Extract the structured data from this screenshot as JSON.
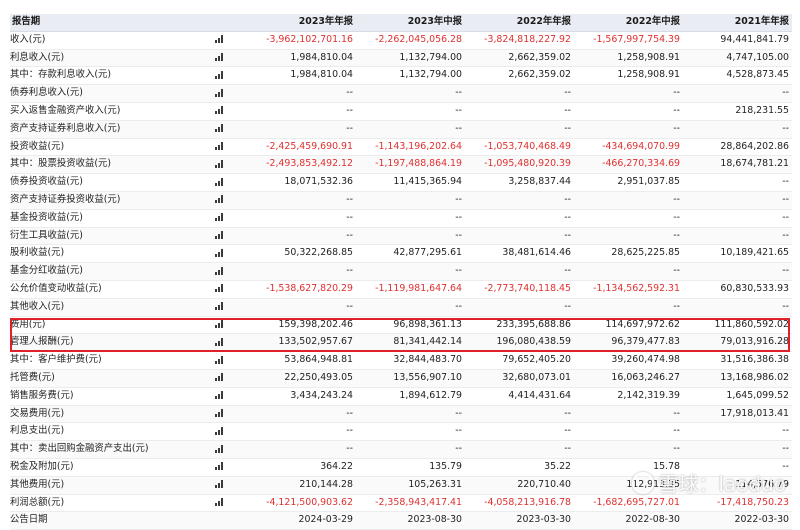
{
  "header": {
    "label": "报告期",
    "periods": [
      "2023年年报",
      "2023年中报",
      "2022年年报",
      "2022年中报",
      "2021年年报"
    ]
  },
  "rows": [
    {
      "label": "收入(元)",
      "level": 0,
      "values": [
        "-3,962,102,701.16",
        "-2,262,045,056.28",
        "-3,824,818,227.92",
        "-1,567,997,754.39",
        "94,441,841.79"
      ]
    },
    {
      "label": "利息收入(元)",
      "level": 1,
      "values": [
        "1,984,810.04",
        "1,132,794.00",
        "2,662,359.02",
        "1,258,908.91",
        "4,747,105.00"
      ]
    },
    {
      "label": "其中：存款利息收入(元)",
      "level": 1,
      "values": [
        "1,984,810.04",
        "1,132,794.00",
        "2,662,359.02",
        "1,258,908.91",
        "4,528,873.45"
      ]
    },
    {
      "label": "债券利息收入(元)",
      "level": 2,
      "values": [
        "--",
        "--",
        "--",
        "--",
        "--"
      ]
    },
    {
      "label": "买入返售金融资产收入(元)",
      "level": 2,
      "values": [
        "--",
        "--",
        "--",
        "--",
        "218,231.55"
      ]
    },
    {
      "label": "资产支持证券利息收入(元)",
      "level": 2,
      "values": [
        "--",
        "--",
        "--",
        "--",
        "--"
      ]
    },
    {
      "label": "投资收益(元)",
      "level": 1,
      "values": [
        "-2,425,459,690.91",
        "-1,143,196,202.64",
        "-1,053,740,468.49",
        "-434,694,070.99",
        "28,864,202.86"
      ]
    },
    {
      "label": "其中：股票投资收益(元)",
      "level": 1,
      "values": [
        "-2,493,853,492.12",
        "-1,197,488,864.19",
        "-1,095,480,920.39",
        "-466,270,334.69",
        "18,674,781.21"
      ]
    },
    {
      "label": "债券投资收益(元)",
      "level": 2,
      "values": [
        "18,071,532.36",
        "11,415,365.94",
        "3,258,837.44",
        "2,951,037.85",
        "--"
      ]
    },
    {
      "label": "资产支持证券投资收益(元)",
      "level": 2,
      "values": [
        "--",
        "--",
        "--",
        "--",
        "--"
      ]
    },
    {
      "label": "基金投资收益(元)",
      "level": 2,
      "values": [
        "--",
        "--",
        "--",
        "--",
        "--"
      ]
    },
    {
      "label": "衍生工具收益(元)",
      "level": 2,
      "values": [
        "--",
        "--",
        "--",
        "--",
        "--"
      ]
    },
    {
      "label": "股利收益(元)",
      "level": 2,
      "values": [
        "50,322,268.85",
        "42,877,295.61",
        "38,481,614.46",
        "28,625,225.85",
        "10,189,421.65"
      ]
    },
    {
      "label": "基金分红收益(元)",
      "level": 2,
      "values": [
        "--",
        "--",
        "--",
        "--",
        "--"
      ]
    },
    {
      "label": "公允价值变动收益(元)",
      "level": 1,
      "values": [
        "-1,538,627,820.29",
        "-1,119,981,647.64",
        "-2,773,740,118.45",
        "-1,134,562,592.31",
        "60,830,533.93"
      ]
    },
    {
      "label": "其他收入(元)",
      "level": 1,
      "values": [
        "--",
        "--",
        "--",
        "--",
        "--"
      ]
    },
    {
      "label": "费用(元)",
      "level": 0,
      "values": [
        "159,398,202.46",
        "96,898,361.13",
        "233,395,688.86",
        "114,697,972.62",
        "111,860,592.02"
      ]
    },
    {
      "label": "管理人报酬(元)",
      "level": 1,
      "values": [
        "133,502,957.67",
        "81,341,442.14",
        "196,080,438.59",
        "96,379,477.83",
        "79,013,916.28"
      ]
    },
    {
      "label": "其中：客户维护费(元)",
      "level": 1,
      "values": [
        "53,864,948.81",
        "32,844,483.70",
        "79,652,405.20",
        "39,260,474.98",
        "31,516,386.38"
      ]
    },
    {
      "label": "托管费(元)",
      "level": 1,
      "values": [
        "22,250,493.05",
        "13,556,907.10",
        "32,680,073.01",
        "16,063,246.27",
        "13,168,986.02"
      ]
    },
    {
      "label": "销售服务费(元)",
      "level": 1,
      "values": [
        "3,434,243.24",
        "1,894,612.79",
        "4,414,431.64",
        "2,142,319.39",
        "1,645,099.52"
      ]
    },
    {
      "label": "交易费用(元)",
      "level": 1,
      "values": [
        "--",
        "--",
        "--",
        "--",
        "17,918,013.41"
      ]
    },
    {
      "label": "利息支出(元)",
      "level": 1,
      "values": [
        "--",
        "--",
        "--",
        "--",
        "--"
      ]
    },
    {
      "label": "其中：卖出回购金融资产支出(元)",
      "level": 1,
      "values": [
        "--",
        "--",
        "--",
        "--",
        "--"
      ]
    },
    {
      "label": "税金及附加(元)",
      "level": 1,
      "values": [
        "364.22",
        "135.79",
        "35.22",
        "15.78",
        "--"
      ]
    },
    {
      "label": "其他费用(元)",
      "level": 1,
      "values": [
        "210,144.28",
        "105,263.31",
        "220,710.40",
        "112,913.35",
        "114,576.79"
      ]
    },
    {
      "label": "利润总额(元)",
      "level": 0,
      "values": [
        "-4,121,500,903.62",
        "-2,358,943,417.41",
        "-4,058,213,916.78",
        "-1,682,695,727.01",
        "-17,418,750.23"
      ]
    },
    {
      "label": "公告日期",
      "level": 0,
      "values": [
        "2024-03-29",
        "2023-08-30",
        "2023-03-30",
        "2022-08-30",
        "2022-03-30"
      ]
    }
  ],
  "watermark": {
    "text": "雪球：laoduo"
  },
  "colors": {
    "negative": "#e03030",
    "header_bg": "#e9edf3",
    "highlight_border": "#e0202a"
  }
}
